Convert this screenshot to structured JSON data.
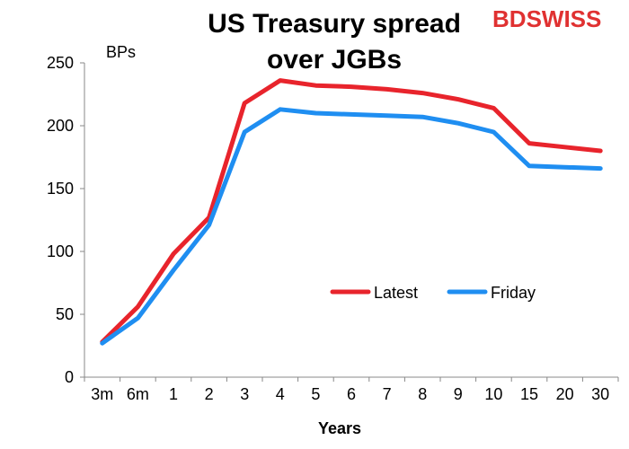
{
  "logo": {
    "part1": "BD",
    "part2": "SWISS",
    "color": "#e03131"
  },
  "chart_data": {
    "type": "line",
    "title_line1": "US Treasury spread",
    "title_line2": "over JGBs",
    "ylabel": "BPs",
    "xlabel": "Years",
    "categories": [
      "3m",
      "6m",
      "1",
      "2",
      "3",
      "4",
      "5",
      "6",
      "7",
      "8",
      "9",
      "10",
      "15",
      "20",
      "30"
    ],
    "ylim": [
      0,
      250
    ],
    "yticks": [
      0,
      50,
      100,
      150,
      200,
      250
    ],
    "series": [
      {
        "name": "Latest",
        "color": "#e8242c",
        "values": [
          28,
          56,
          98,
          127,
          218,
          236,
          232,
          231,
          229,
          226,
          221,
          214,
          186,
          183,
          180
        ]
      },
      {
        "name": "Friday",
        "color": "#1f8ef1",
        "values": [
          27,
          47,
          85,
          121,
          195,
          213,
          210,
          209,
          208,
          207,
          202,
          195,
          168,
          167,
          166
        ]
      }
    ],
    "legend_position": "inside-right",
    "grid": false
  }
}
